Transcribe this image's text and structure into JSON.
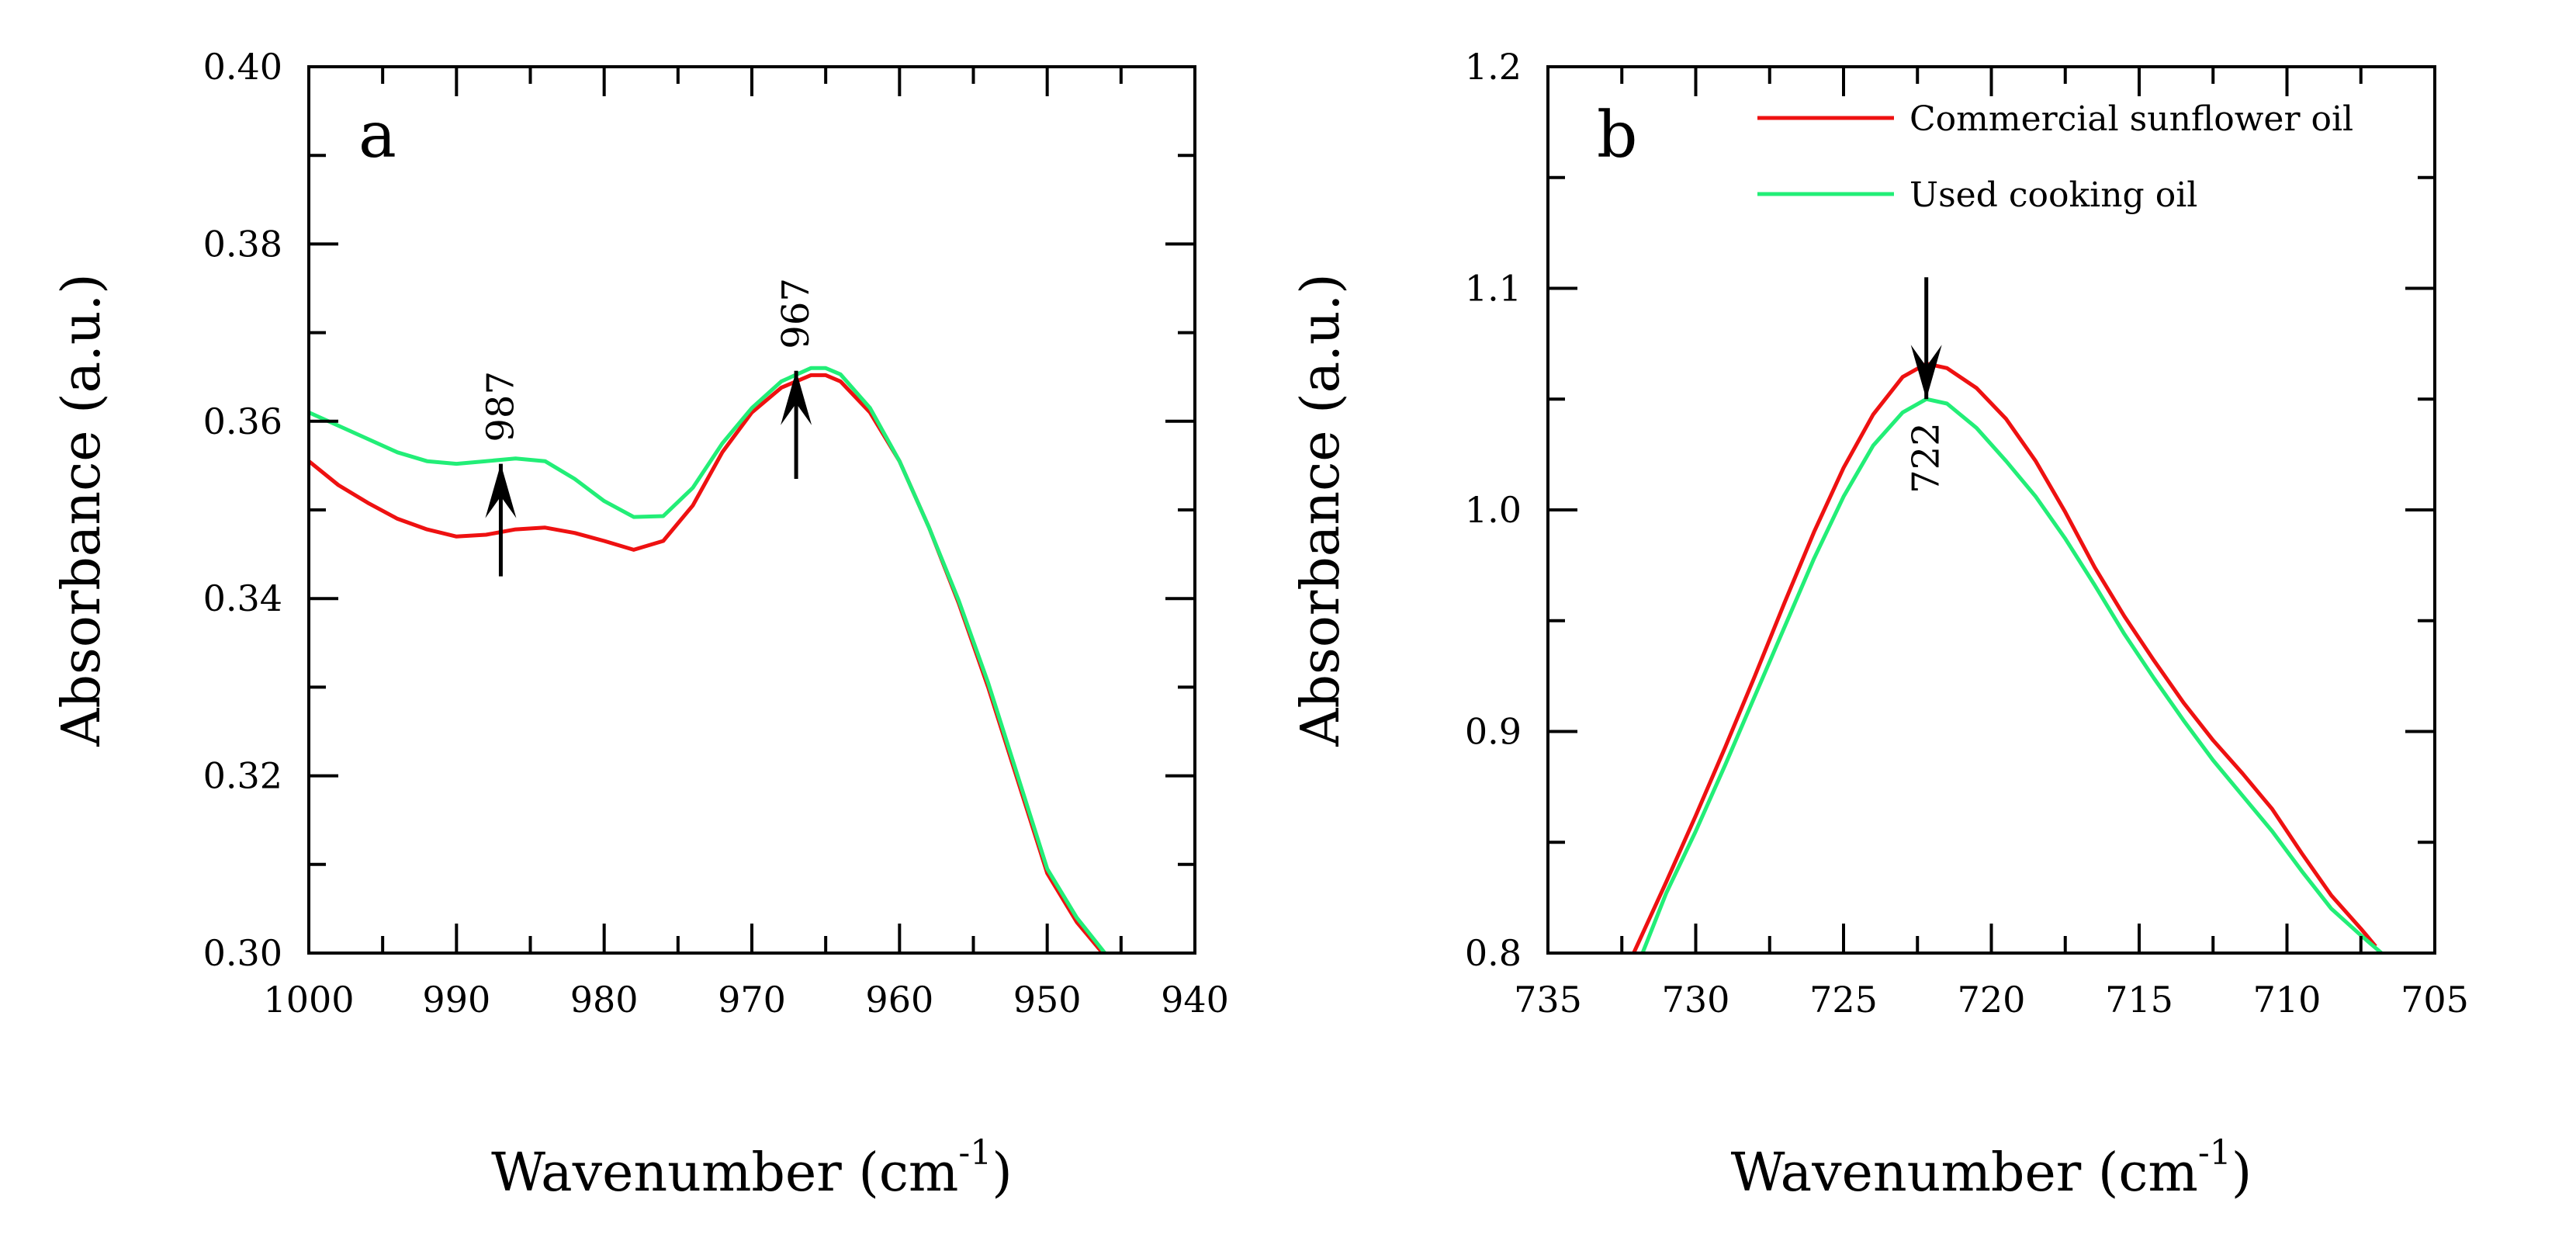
{
  "chart_data": [
    {
      "panel": "a",
      "type": "line",
      "xlabel": "Wavenumber (cm",
      "xlabel_sup": "-1",
      "xlabel_close": ")",
      "ylabel": "Absorbance (a.u.)",
      "xlim": [
        1000,
        940
      ],
      "ylim": [
        0.3,
        0.4
      ],
      "x_reversed": true,
      "x_ticks": [
        1000,
        990,
        980,
        970,
        960,
        950,
        940
      ],
      "x_tick_labels": [
        "1000",
        "990",
        "980",
        "970",
        "960",
        "950",
        "940"
      ],
      "y_ticks": [
        0.3,
        0.32,
        0.34,
        0.36,
        0.38,
        0.4
      ],
      "y_tick_labels": [
        "0.30",
        "0.32",
        "0.34",
        "0.36",
        "0.38",
        "0.40"
      ],
      "grid": false,
      "series": [
        {
          "color": "#ee1111",
          "x": [
            1000,
            998,
            996,
            994,
            992,
            990,
            988,
            986,
            984,
            982,
            980,
            978,
            976,
            974,
            972,
            970,
            968,
            966,
            965,
            964,
            962,
            960,
            958,
            956,
            954,
            952,
            950,
            948,
            946
          ],
          "y": [
            0.3555,
            0.3528,
            0.3508,
            0.349,
            0.3478,
            0.347,
            0.3472,
            0.3478,
            0.348,
            0.3474,
            0.3465,
            0.3455,
            0.3465,
            0.3505,
            0.3565,
            0.361,
            0.3638,
            0.3652,
            0.3652,
            0.3645,
            0.361,
            0.3555,
            0.348,
            0.3395,
            0.33,
            0.3195,
            0.309,
            0.3035,
            0.2995
          ]
        },
        {
          "color": "#22ee77",
          "x": [
            1000,
            998,
            996,
            994,
            992,
            990,
            988,
            986,
            984,
            982,
            980,
            978,
            976,
            974,
            972,
            970,
            968,
            966,
            965,
            964,
            962,
            960,
            958,
            956,
            954,
            952,
            950,
            948,
            946
          ],
          "y": [
            0.361,
            0.3595,
            0.358,
            0.3565,
            0.3555,
            0.3552,
            0.3555,
            0.3558,
            0.3555,
            0.3535,
            0.351,
            0.3492,
            0.3493,
            0.3525,
            0.3575,
            0.3615,
            0.3645,
            0.366,
            0.366,
            0.3653,
            0.3615,
            0.3555,
            0.348,
            0.3398,
            0.3305,
            0.32,
            0.3095,
            0.304,
            0.2998
          ]
        }
      ],
      "annotations": [
        {
          "label": "987",
          "x": 987,
          "direction": "up",
          "tail": 0.3425,
          "head": 0.3552
        },
        {
          "label": "967",
          "x": 967,
          "direction": "up",
          "tail": 0.3535,
          "head": 0.3657
        }
      ]
    },
    {
      "panel": "b",
      "type": "line",
      "xlabel": "Wavenumber (cm",
      "xlabel_sup": "-1",
      "xlabel_close": ")",
      "ylabel": "Absorbance (a.u.)",
      "xlim": [
        735,
        705
      ],
      "ylim": [
        0.8,
        1.2
      ],
      "x_reversed": true,
      "x_ticks": [
        735,
        730,
        725,
        720,
        715,
        710,
        705
      ],
      "x_tick_labels": [
        "735",
        "730",
        "725",
        "720",
        "715",
        "710",
        "705"
      ],
      "y_ticks": [
        0.8,
        0.9,
        1.0,
        1.1,
        1.2
      ],
      "y_tick_labels": [
        "0.8",
        "0.9",
        "1.0",
        "1.1",
        "1.2"
      ],
      "grid": false,
      "legend_position": "top-right",
      "series": [
        {
          "name": "Commercial sunflower oil",
          "color": "#ee1111",
          "x": [
            732.1,
            731,
            730,
            729,
            728,
            727,
            726,
            725,
            724,
            723,
            722.2,
            721.5,
            720.5,
            719.5,
            718.5,
            717.5,
            716.5,
            715.5,
            714.5,
            713.5,
            712.5,
            711.5,
            710.5,
            709.5,
            708.5,
            707.5,
            707
          ],
          "y": [
            0.8,
            0.832,
            0.862,
            0.893,
            0.925,
            0.958,
            0.99,
            1.019,
            1.043,
            1.06,
            1.066,
            1.064,
            1.055,
            1.041,
            1.022,
            0.999,
            0.974,
            0.952,
            0.932,
            0.913,
            0.896,
            0.881,
            0.865,
            0.845,
            0.826,
            0.811,
            0.803
          ]
        },
        {
          "name": "Used cooking oil",
          "color": "#22ee77",
          "x": [
            731.8,
            731,
            730,
            729,
            728,
            727,
            726,
            725,
            724,
            723,
            722.2,
            721.5,
            720.5,
            719.5,
            718.5,
            717.5,
            716.5,
            715.5,
            714.5,
            713.5,
            712.5,
            711.5,
            710.5,
            709.5,
            708.5,
            707.5,
            706.8
          ],
          "y": [
            0.8,
            0.827,
            0.855,
            0.885,
            0.916,
            0.947,
            0.978,
            1.006,
            1.029,
            1.044,
            1.05,
            1.048,
            1.037,
            1.022,
            1.006,
            0.987,
            0.966,
            0.944,
            0.924,
            0.905,
            0.887,
            0.871,
            0.855,
            0.837,
            0.82,
            0.808,
            0.8
          ]
        }
      ],
      "annotations": [
        {
          "label": "722",
          "x": 722.2,
          "direction": "down",
          "tail": 1.105,
          "head": 1.05
        }
      ]
    }
  ]
}
